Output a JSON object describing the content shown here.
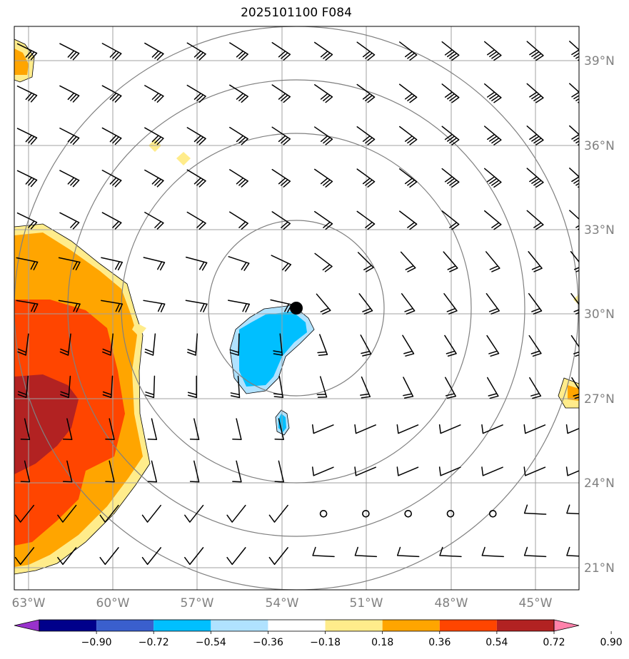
{
  "title": "2025101100 F084",
  "map": {
    "lat_ticks": [
      "39°N",
      "36°N",
      "33°N",
      "30°N",
      "27°N",
      "24°N",
      "21°N"
    ],
    "lon_ticks": [
      "63°W",
      "60°W",
      "57°W",
      "54°W",
      "51°W",
      "48°W",
      "45°W"
    ],
    "gridline_color": "#a0a0a0",
    "range_ring_color": "#808080",
    "center_marker": "storm-center-dot"
  },
  "colorbar": {
    "labels": [
      "−0.90",
      "−0.72",
      "−0.54",
      "−0.36",
      "−0.18",
      "0.18",
      "0.36",
      "0.54",
      "0.72",
      "0.90"
    ],
    "colors": [
      "#9932cc",
      "#00008b",
      "#3a5fcd",
      "#00bfff",
      "#b0e2ff",
      "#ffffff",
      "#ffec8b",
      "#ffa500",
      "#ff4500",
      "#b22222",
      "#ff82ab"
    ]
  }
}
